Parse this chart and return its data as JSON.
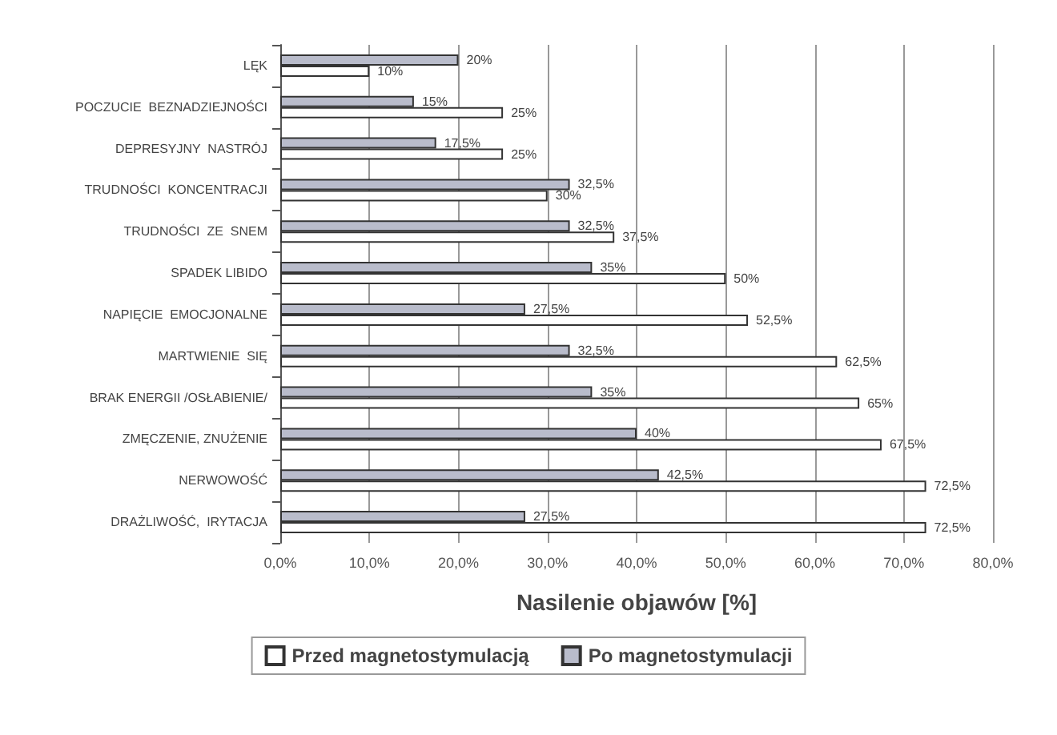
{
  "chart_data": {
    "type": "bar",
    "orientation": "horizontal",
    "xlabel": "Nasilenie objawów [%]",
    "categories": [
      "LĘK",
      "POCZUCIE  BEZNADZIEJNOŚCI",
      "DEPRESYJNY  NASTRÓJ",
      "TRUDNOŚCI  KONCENTRACJI",
      "TRUDNOŚCI  ZE  SNEM",
      "SPADEK LIBIDO",
      "NAPIĘCIE  EMOCJONALNE",
      "MARTWIENIE  SIĘ",
      "BRAK ENERGII /OSŁABIENIE/",
      "ZMĘCZENIE, ZNUŻENIE",
      "NERWOWOŚĆ",
      "DRAŻLIWOŚĆ,  IRYTACJA"
    ],
    "series": [
      {
        "name": "Przed magnetostymulacją",
        "color": "#ffffff",
        "values": [
          10,
          25,
          25,
          30,
          37.5,
          50,
          52.5,
          62.5,
          65,
          67.5,
          72.5,
          72.5
        ],
        "value_labels": [
          "10%",
          "25%",
          "25%",
          "30%",
          "37,5%",
          "50%",
          "52,5%",
          "62,5%",
          "65%",
          "67,5%",
          "72,5%",
          "72,5%"
        ]
      },
      {
        "name": "Po magnetostymulacji",
        "color": "#b9bccb",
        "values": [
          20,
          15,
          17.5,
          32.5,
          32.5,
          35,
          27.5,
          32.5,
          35,
          40,
          42.5,
          27.5
        ],
        "value_labels": [
          "20%",
          "15%",
          "17,5%",
          "32,5%",
          "32,5%",
          "35%",
          "27,5%",
          "32,5%",
          "35%",
          "40%",
          "42,5%",
          "27,5%"
        ]
      }
    ],
    "xlim": [
      0,
      80
    ],
    "xticks": [
      {
        "value": 0,
        "label": "0,0%"
      },
      {
        "value": 10,
        "label": "10,0%"
      },
      {
        "value": 20,
        "label": "20,0%"
      },
      {
        "value": 30,
        "label": "30,0%"
      },
      {
        "value": 40,
        "label": "40,0%"
      },
      {
        "value": 50,
        "label": "50,0%"
      },
      {
        "value": 60,
        "label": "60,0%"
      },
      {
        "value": 70,
        "label": "70,0%"
      },
      {
        "value": 80,
        "label": "80,0%"
      }
    ],
    "grid": "x",
    "legend": "bottom"
  }
}
